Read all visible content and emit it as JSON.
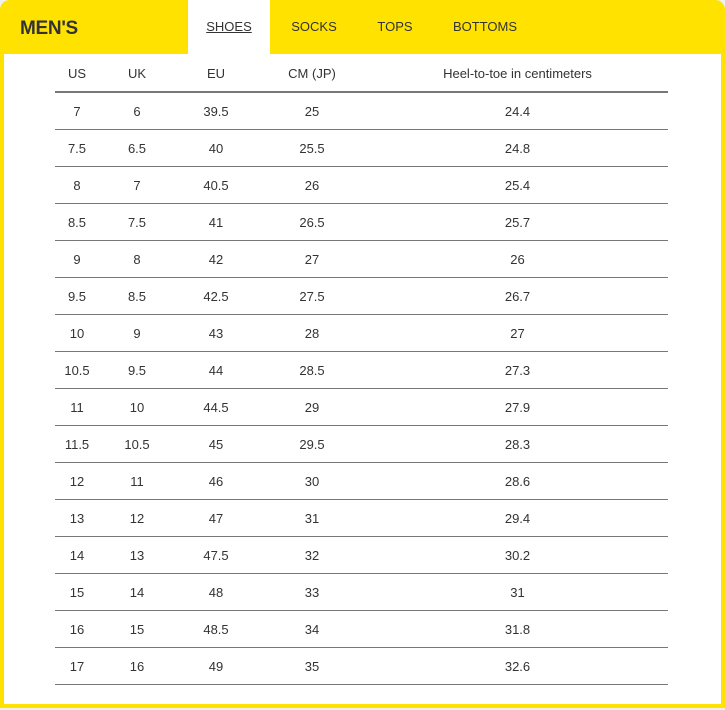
{
  "header": {
    "title": "MEN'S",
    "brand_color": "#FFE200"
  },
  "tabs": [
    {
      "label": "SHOES",
      "active": true
    },
    {
      "label": "SOCKS",
      "active": false
    },
    {
      "label": "TOPS",
      "active": false
    },
    {
      "label": "BOTTOMS",
      "active": false
    }
  ],
  "table": {
    "columns": [
      "US",
      "UK",
      "EU",
      "CM (JP)",
      "Heel-to-toe in centimeters"
    ],
    "rows": [
      [
        "7",
        "6",
        "39.5",
        "25",
        "24.4"
      ],
      [
        "7.5",
        "6.5",
        "40",
        "25.5",
        "24.8"
      ],
      [
        "8",
        "7",
        "40.5",
        "26",
        "25.4"
      ],
      [
        "8.5",
        "7.5",
        "41",
        "26.5",
        "25.7"
      ],
      [
        "9",
        "8",
        "42",
        "27",
        "26"
      ],
      [
        "9.5",
        "8.5",
        "42.5",
        "27.5",
        "26.7"
      ],
      [
        "10",
        "9",
        "43",
        "28",
        "27"
      ],
      [
        "10.5",
        "9.5",
        "44",
        "28.5",
        "27.3"
      ],
      [
        "11",
        "10",
        "44.5",
        "29",
        "27.9"
      ],
      [
        "11.5",
        "10.5",
        "45",
        "29.5",
        "28.3"
      ],
      [
        "12",
        "11",
        "46",
        "30",
        "28.6"
      ],
      [
        "13",
        "12",
        "47",
        "31",
        "29.4"
      ],
      [
        "14",
        "13",
        "47.5",
        "32",
        "30.2"
      ],
      [
        "15",
        "14",
        "48",
        "33",
        "31"
      ],
      [
        "16",
        "15",
        "48.5",
        "34",
        "31.8"
      ],
      [
        "17",
        "16",
        "49",
        "35",
        "32.6"
      ]
    ]
  }
}
